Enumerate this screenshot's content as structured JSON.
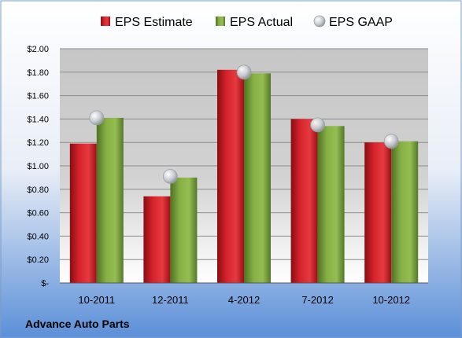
{
  "chart_data": {
    "type": "bar",
    "categories": [
      "10-2011",
      "12-2011",
      "4-2012",
      "7-2012",
      "10-2012"
    ],
    "series": [
      {
        "name": "EPS Estimate",
        "kind": "bar",
        "color": "#d01c24",
        "values": [
          1.19,
          0.74,
          1.82,
          1.4,
          1.2
        ]
      },
      {
        "name": "EPS Actual",
        "kind": "bar",
        "color": "#7aa53a",
        "values": [
          1.41,
          0.9,
          1.79,
          1.34,
          1.21
        ]
      },
      {
        "name": "EPS GAAP",
        "kind": "marker",
        "color": "#bfc3c9",
        "values": [
          1.41,
          0.91,
          1.8,
          1.35,
          1.21
        ]
      }
    ],
    "ylim": [
      0,
      2.0
    ],
    "yticks": [
      0,
      0.2,
      0.4,
      0.6,
      0.8,
      1.0,
      1.2,
      1.4,
      1.6,
      1.8,
      2.0
    ],
    "ytick_labels": [
      "$-",
      "$0.20",
      "$0.40",
      "$0.60",
      "$0.80",
      "$1.00",
      "$1.20",
      "$1.40",
      "$1.60",
      "$1.80",
      "$2.00"
    ],
    "grid": true,
    "legend_position": "top",
    "title": "",
    "xlabel": "",
    "ylabel": "",
    "footer_label": "Advance Auto Parts"
  }
}
